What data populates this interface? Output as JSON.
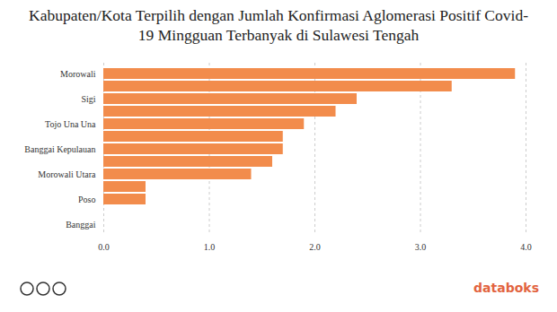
{
  "chart_data": {
    "type": "bar",
    "orientation": "horizontal",
    "title": "Kabupaten/Kota Terpilih dengan Jumlah Konfirmasi Aglomerasi Positif Covid-19 Mingguan Terbanyak di Sulawesi Tengah",
    "categories": [
      "Morowali",
      null,
      "Sigi",
      null,
      "Tojo Una Una",
      null,
      "Banggai Kepulauan",
      null,
      "Morowali Utara",
      null,
      "Poso",
      null,
      "Banggai"
    ],
    "values": [
      3.9,
      3.3,
      2.4,
      2.2,
      1.9,
      1.7,
      1.7,
      1.6,
      1.4,
      0.4,
      0.4,
      0,
      0
    ],
    "color": "#f28c4c",
    "xlim": [
      0,
      4
    ],
    "xticks": [
      0,
      1,
      2,
      3,
      4
    ],
    "grid": true
  },
  "brand": "databoks"
}
